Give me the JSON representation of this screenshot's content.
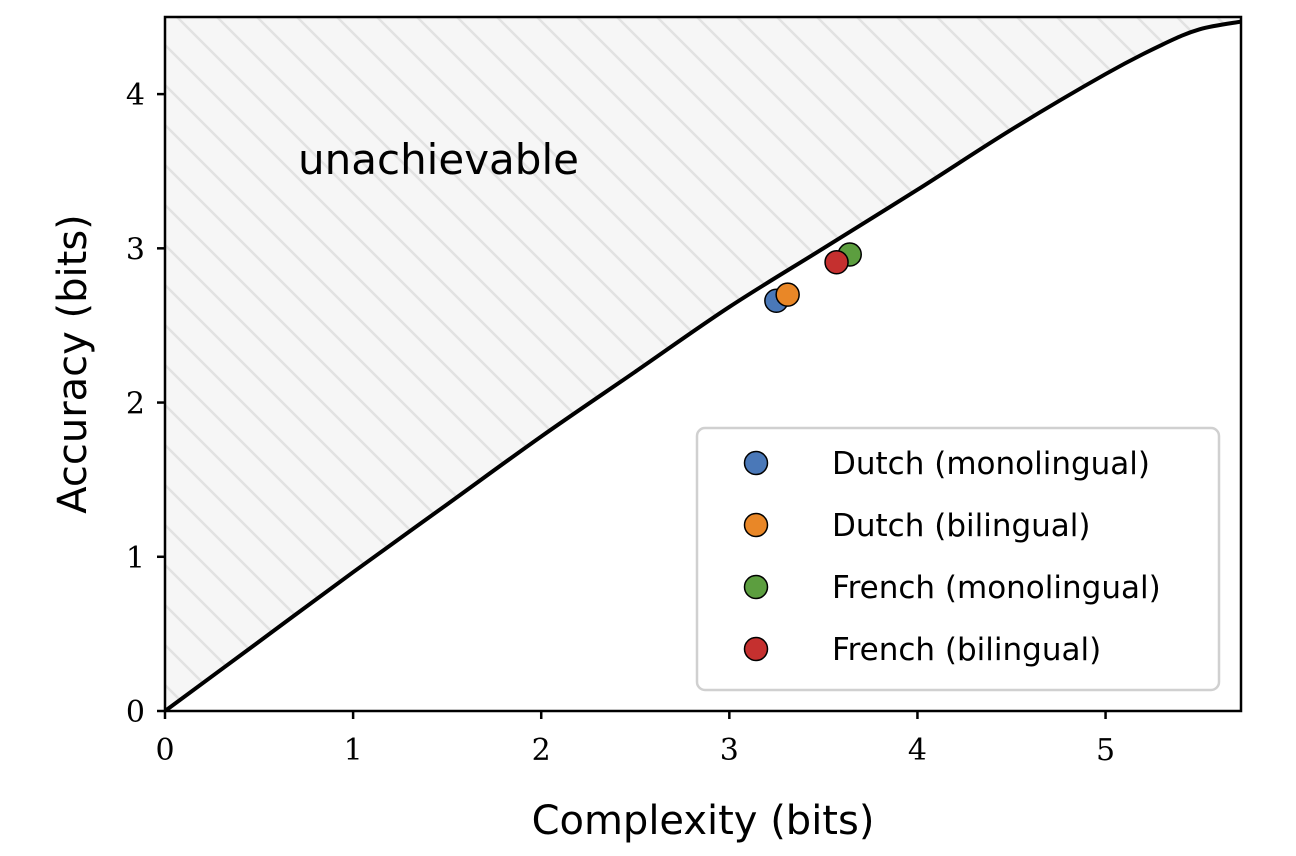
{
  "chart_data": {
    "type": "scatter",
    "xlabel": "Complexity (bits)",
    "ylabel": "Accuracy (bits)",
    "xlim": [
      0,
      5.72
    ],
    "ylim": [
      0,
      4.5
    ],
    "xticks": [
      0,
      1,
      2,
      3,
      4,
      5
    ],
    "yticks": [
      0,
      1,
      2,
      3,
      4
    ],
    "grid": false,
    "legend_position": "bottom-right",
    "annotation": "unachievable",
    "frontier": {
      "x": [
        0,
        0.5,
        1.0,
        1.5,
        2.0,
        2.5,
        3.0,
        3.5,
        4.0,
        4.5,
        5.0,
        5.3,
        5.5,
        5.72
      ],
      "y": [
        0,
        0.45,
        0.9,
        1.34,
        1.78,
        2.2,
        2.62,
        3.0,
        3.38,
        3.77,
        4.13,
        4.32,
        4.42,
        4.47
      ]
    },
    "series": [
      {
        "name": "Dutch (monolingual)",
        "color": "#4a78b8",
        "x": [
          3.25
        ],
        "y": [
          2.66
        ]
      },
      {
        "name": "Dutch (bilingual)",
        "color": "#e98727",
        "x": [
          3.31
        ],
        "y": [
          2.7
        ]
      },
      {
        "name": "French (monolingual)",
        "color": "#5c9e3f",
        "x": [
          3.64
        ],
        "y": [
          2.96
        ]
      },
      {
        "name": "French (bilingual)",
        "color": "#c5302f",
        "x": [
          3.57
        ],
        "y": [
          2.91
        ]
      }
    ]
  }
}
